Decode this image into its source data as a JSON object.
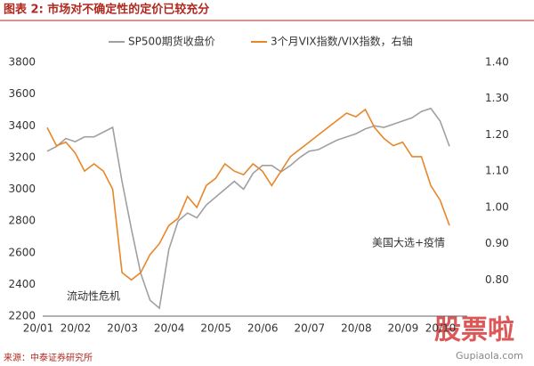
{
  "chart_data": {
    "type": "line",
    "title": "图表 2: 市场对不确定性的定价已较充分",
    "source": "来源：中泰证券研究所",
    "watermark": "股票啦",
    "watermark_url": "Gupiaola.com",
    "annotations": [
      "流动性危机",
      "美国大选+疫情"
    ],
    "categories": [
      "20/01",
      null,
      null,
      null,
      "20/02",
      null,
      null,
      null,
      null,
      "20/03",
      null,
      null,
      null,
      null,
      "20/04",
      null,
      null,
      null,
      null,
      "20/05",
      null,
      null,
      null,
      null,
      "20/06",
      null,
      null,
      null,
      null,
      "20/07",
      null,
      null,
      null,
      null,
      "20/08",
      null,
      null,
      null,
      null,
      "20/09",
      null,
      null,
      null,
      "20/10"
    ],
    "ylim": [
      2200,
      3800
    ],
    "yticks": [
      2200,
      2400,
      2600,
      2800,
      3000,
      3200,
      3400,
      3600,
      3800
    ],
    "y2lim": [
      0.7,
      1.4
    ],
    "y2ticks": [
      {
        "value": 0.8,
        "label": "0.80"
      },
      {
        "value": 0.9,
        "label": "0.90"
      },
      {
        "value": 1.0,
        "label": "1.00"
      },
      {
        "value": 1.1,
        "label": "1.10"
      },
      {
        "value": 1.2,
        "label": "1.20"
      },
      {
        "value": 1.3,
        "label": "1.30"
      },
      {
        "value": 1.4,
        "label": "1.40"
      }
    ],
    "series": [
      {
        "name": "SP500期货收盘价",
        "color": "#a0a0a0",
        "values": [
          3240,
          3270,
          3320,
          3300,
          3330,
          3330,
          3360,
          3390,
          3050,
          2750,
          2470,
          2300,
          2250,
          2620,
          2800,
          2850,
          2820,
          2900,
          2950,
          3000,
          3050,
          3000,
          3100,
          3150,
          3150,
          3110,
          3150,
          3200,
          3240,
          3250,
          3280,
          3310,
          3330,
          3350,
          3380,
          3400,
          3390,
          3410,
          3430,
          3450,
          3490,
          3510,
          3430,
          3270
        ]
      },
      {
        "name": "3个月VIX指数/VIX指数，右轴",
        "color": "#e8862a",
        "axis": "y2",
        "values": [
          1.22,
          1.17,
          1.18,
          1.15,
          1.1,
          1.12,
          1.1,
          1.05,
          0.82,
          0.8,
          0.82,
          0.87,
          0.9,
          0.95,
          0.97,
          1.03,
          1.0,
          1.06,
          1.08,
          1.12,
          1.1,
          1.09,
          1.12,
          1.1,
          1.06,
          1.1,
          1.14,
          1.16,
          1.18,
          1.2,
          1.22,
          1.24,
          1.26,
          1.25,
          1.27,
          1.22,
          1.19,
          1.17,
          1.18,
          1.14,
          1.14,
          1.06,
          1.02,
          0.95
        ]
      }
    ]
  }
}
